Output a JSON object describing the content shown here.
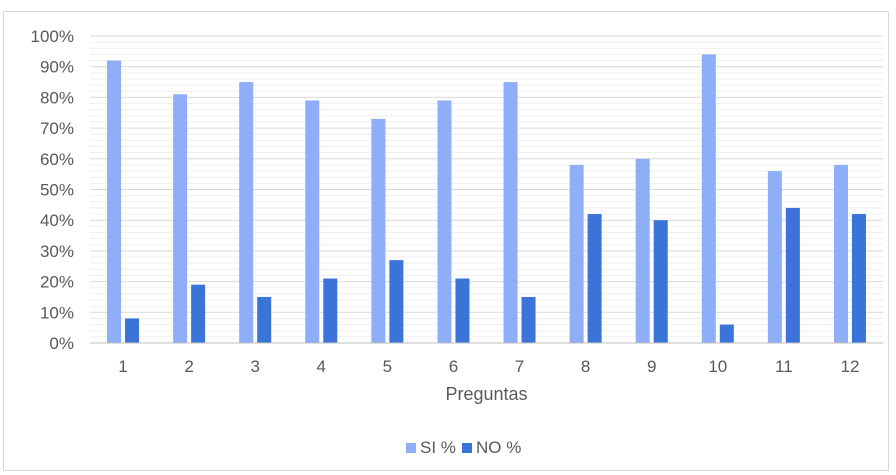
{
  "chart_data": {
    "type": "bar",
    "title": "",
    "xlabel": "Preguntas",
    "ylabel": "",
    "ylim": [
      0,
      1
    ],
    "yticks": [
      0,
      0.1,
      0.2,
      0.3,
      0.4,
      0.5,
      0.6,
      0.7,
      0.8,
      0.9,
      1.0
    ],
    "ytick_labels": [
      "0%",
      "10%",
      "20%",
      "30%",
      "40%",
      "50%",
      "60%",
      "70%",
      "80%",
      "90%",
      "100%"
    ],
    "categories": [
      "1",
      "2",
      "3",
      "4",
      "5",
      "6",
      "7",
      "8",
      "9",
      "10",
      "11",
      "12"
    ],
    "series": [
      {
        "name": "SI %",
        "color": "#8eaef7",
        "values": [
          0.92,
          0.81,
          0.85,
          0.79,
          0.73,
          0.79,
          0.85,
          0.58,
          0.6,
          0.94,
          0.56,
          0.58
        ]
      },
      {
        "name": "NO %",
        "color": "#3a74d9",
        "values": [
          0.08,
          0.19,
          0.15,
          0.21,
          0.27,
          0.21,
          0.15,
          0.42,
          0.4,
          0.06,
          0.44,
          0.42
        ]
      }
    ],
    "grid": true,
    "legend_position": "bottom"
  }
}
